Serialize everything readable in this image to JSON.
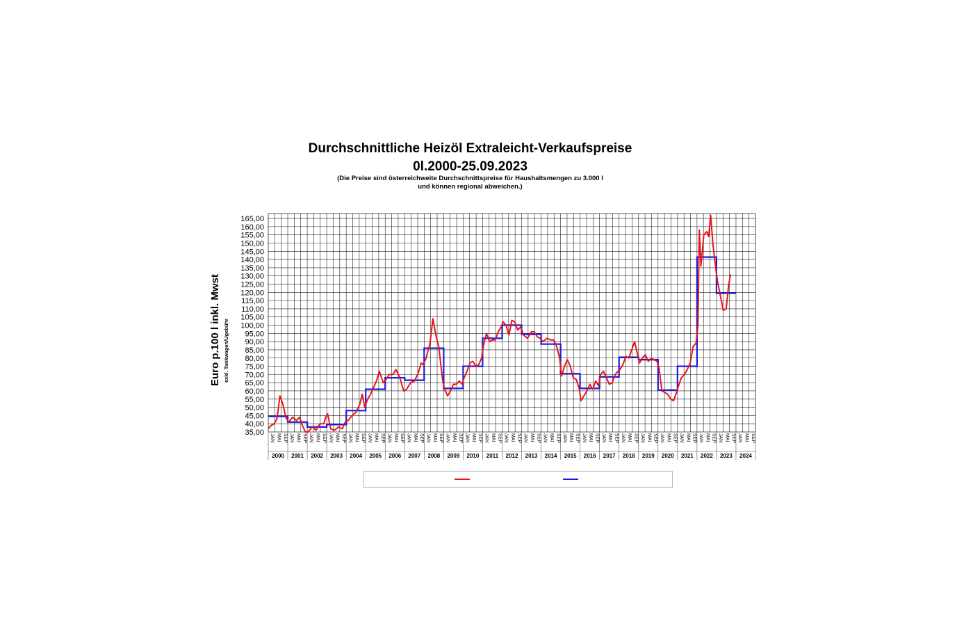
{
  "header": {
    "title_line1": "Durchschnittliche Heizöl Extraleicht-Verkaufspreise",
    "title_line2": "0l.2000-25.09.2023",
    "note_line1": "(Die Preise sind österreichweite Durchschnittspreise für Haushaltsmengen zu 3.000 l",
    "note_line2": "und können regional abweichen.)"
  },
  "axis": {
    "ylabel": "Euro p.100 l inkl. Mwst",
    "ylabel_sub": "exkl. Tankwagen/Ugebühr"
  },
  "legend": {
    "series_monthly_label": "---",
    "series_yearly_label": "-----"
  },
  "colors": {
    "monthly": "#e8141b",
    "yearly": "#1b1bdc",
    "grid": "#202020",
    "plot_bg": "#ffffff"
  },
  "chart_data": {
    "type": "line",
    "title": "Durchschnittliche Heizöl Extraleicht-Verkaufspreise",
    "ylabel": "Euro p.100 l inkl. Mwst",
    "ylim": [
      35,
      168
    ],
    "yticks": [
      "35,00",
      "40,00",
      "45,00",
      "50,00",
      "55,00",
      "60,00",
      "65,00",
      "70,00",
      "75,00",
      "80,00",
      "85,00",
      "90,00",
      "95,00",
      "100,00",
      "105,00",
      "110,00",
      "115,00",
      "120,00",
      "125,00",
      "130,00",
      "135,00",
      "140,00",
      "145,00",
      "150,00",
      "155,00",
      "160,00",
      "165,00"
    ],
    "month_labels": [
      "JAN",
      "MAI",
      "SEP"
    ],
    "years": [
      "2000",
      "2001",
      "2002",
      "2003",
      "2004",
      "2005",
      "2006",
      "2007",
      "2008",
      "2009",
      "2010",
      "2011",
      "2012",
      "2013",
      "2014",
      "2015",
      "2016",
      "2017",
      "2018",
      "2019",
      "2020",
      "2021",
      "2022",
      "2023",
      "2024"
    ],
    "grid": true,
    "series": [
      {
        "kind": "monthly",
        "values": [
          [
            2000.0,
            37
          ],
          [
            2000.15,
            39
          ],
          [
            2000.3,
            40
          ],
          [
            2000.45,
            43
          ],
          [
            2000.6,
            57
          ],
          [
            2000.75,
            52
          ],
          [
            2000.9,
            44
          ],
          [
            2001.05,
            41
          ],
          [
            2001.25,
            44
          ],
          [
            2001.45,
            42
          ],
          [
            2001.6,
            44
          ],
          [
            2001.75,
            39
          ],
          [
            2001.9,
            35
          ],
          [
            2002.05,
            35
          ],
          [
            2002.25,
            38
          ],
          [
            2002.45,
            36
          ],
          [
            2002.65,
            40
          ],
          [
            2002.85,
            40
          ],
          [
            2002.95,
            44
          ],
          [
            2003.05,
            46
          ],
          [
            2003.2,
            37
          ],
          [
            2003.4,
            36
          ],
          [
            2003.6,
            38
          ],
          [
            2003.8,
            37
          ],
          [
            2003.95,
            41
          ],
          [
            2004.1,
            42
          ],
          [
            2004.3,
            45
          ],
          [
            2004.5,
            47
          ],
          [
            2004.7,
            52
          ],
          [
            2004.82,
            58
          ],
          [
            2004.95,
            50
          ],
          [
            2005.1,
            55
          ],
          [
            2005.25,
            58
          ],
          [
            2005.4,
            62
          ],
          [
            2005.55,
            66
          ],
          [
            2005.7,
            72
          ],
          [
            2005.9,
            65
          ],
          [
            2006.05,
            67
          ],
          [
            2006.2,
            70
          ],
          [
            2006.4,
            70
          ],
          [
            2006.55,
            73
          ],
          [
            2006.75,
            68
          ],
          [
            2006.95,
            60
          ],
          [
            2007.1,
            61
          ],
          [
            2007.3,
            65
          ],
          [
            2007.5,
            66
          ],
          [
            2007.7,
            71
          ],
          [
            2007.85,
            77
          ],
          [
            2007.95,
            76
          ],
          [
            2008.1,
            80
          ],
          [
            2008.3,
            89
          ],
          [
            2008.45,
            104
          ],
          [
            2008.6,
            94
          ],
          [
            2008.75,
            87
          ],
          [
            2008.95,
            66
          ],
          [
            2009.05,
            61
          ],
          [
            2009.2,
            57
          ],
          [
            2009.35,
            60
          ],
          [
            2009.5,
            64
          ],
          [
            2009.65,
            64
          ],
          [
            2009.8,
            66
          ],
          [
            2009.95,
            64
          ],
          [
            2010.05,
            68
          ],
          [
            2010.2,
            72
          ],
          [
            2010.35,
            77
          ],
          [
            2010.5,
            78
          ],
          [
            2010.65,
            75
          ],
          [
            2010.8,
            76
          ],
          [
            2010.95,
            80
          ],
          [
            2011.05,
            88
          ],
          [
            2011.2,
            95
          ],
          [
            2011.35,
            90
          ],
          [
            2011.5,
            91
          ],
          [
            2011.65,
            91
          ],
          [
            2011.8,
            96
          ],
          [
            2011.95,
            99
          ],
          [
            2012.05,
            102
          ],
          [
            2012.2,
            100
          ],
          [
            2012.35,
            94
          ],
          [
            2012.5,
            103
          ],
          [
            2012.65,
            102
          ],
          [
            2012.8,
            97
          ],
          [
            2012.95,
            99
          ],
          [
            2013.1,
            94
          ],
          [
            2013.3,
            92
          ],
          [
            2013.5,
            96
          ],
          [
            2013.65,
            96
          ],
          [
            2013.8,
            93
          ],
          [
            2013.95,
            92
          ],
          [
            2014.1,
            90
          ],
          [
            2014.3,
            92
          ],
          [
            2014.5,
            91
          ],
          [
            2014.65,
            91
          ],
          [
            2014.8,
            87
          ],
          [
            2014.95,
            80
          ],
          [
            2015.05,
            69
          ],
          [
            2015.2,
            75
          ],
          [
            2015.35,
            79
          ],
          [
            2015.5,
            75
          ],
          [
            2015.65,
            68
          ],
          [
            2015.8,
            67
          ],
          [
            2015.95,
            62
          ],
          [
            2016.05,
            54
          ],
          [
            2016.2,
            57
          ],
          [
            2016.35,
            60
          ],
          [
            2016.5,
            64
          ],
          [
            2016.65,
            61
          ],
          [
            2016.8,
            66
          ],
          [
            2016.95,
            63
          ],
          [
            2017.05,
            70
          ],
          [
            2017.2,
            72
          ],
          [
            2017.35,
            68
          ],
          [
            2017.5,
            64
          ],
          [
            2017.65,
            65
          ],
          [
            2017.8,
            70
          ],
          [
            2017.95,
            72
          ],
          [
            2018.05,
            73
          ],
          [
            2018.2,
            76
          ],
          [
            2018.35,
            81
          ],
          [
            2018.5,
            80
          ],
          [
            2018.65,
            85
          ],
          [
            2018.8,
            90
          ],
          [
            2018.95,
            82
          ],
          [
            2019.05,
            77
          ],
          [
            2019.2,
            80
          ],
          [
            2019.35,
            82
          ],
          [
            2019.5,
            78
          ],
          [
            2019.65,
            80
          ],
          [
            2019.8,
            79
          ],
          [
            2019.95,
            78
          ],
          [
            2020.05,
            74
          ],
          [
            2020.2,
            60
          ],
          [
            2020.35,
            59
          ],
          [
            2020.5,
            58
          ],
          [
            2020.65,
            55
          ],
          [
            2020.8,
            54
          ],
          [
            2020.95,
            59
          ],
          [
            2021.05,
            63
          ],
          [
            2021.2,
            68
          ],
          [
            2021.35,
            70
          ],
          [
            2021.5,
            73
          ],
          [
            2021.65,
            77
          ],
          [
            2021.8,
            87
          ],
          [
            2021.95,
            89
          ],
          [
            2022.05,
            100
          ],
          [
            2022.12,
            158
          ],
          [
            2022.2,
            136
          ],
          [
            2022.35,
            155
          ],
          [
            2022.5,
            157
          ],
          [
            2022.6,
            154
          ],
          [
            2022.7,
            167
          ],
          [
            2022.82,
            149
          ],
          [
            2022.95,
            136
          ],
          [
            2023.05,
            127
          ],
          [
            2023.2,
            118
          ],
          [
            2023.35,
            109
          ],
          [
            2023.5,
            110
          ],
          [
            2023.62,
            124
          ],
          [
            2023.72,
            131
          ]
        ]
      },
      {
        "kind": "yearly",
        "values": [
          [
            "2000",
            44.5
          ],
          [
            "2001",
            41
          ],
          [
            "2002",
            38
          ],
          [
            "2003",
            39.5
          ],
          [
            "2004",
            48
          ],
          [
            "2005",
            61
          ],
          [
            "2006",
            68
          ],
          [
            "2007",
            66.5
          ],
          [
            "2008",
            86
          ],
          [
            "2009",
            61.5
          ],
          [
            "2010",
            75
          ],
          [
            "2011",
            92
          ],
          [
            "2012",
            100
          ],
          [
            "2013",
            94.5
          ],
          [
            "2014",
            88.5
          ],
          [
            "2015",
            70.5
          ],
          [
            "2016",
            61.5
          ],
          [
            "2017",
            68.5
          ],
          [
            "2018",
            80.5
          ],
          [
            "2019",
            79
          ],
          [
            "2020",
            60.5
          ],
          [
            "2021",
            75
          ],
          [
            "2022",
            141.5
          ],
          [
            "2023",
            119.5
          ]
        ]
      }
    ]
  }
}
